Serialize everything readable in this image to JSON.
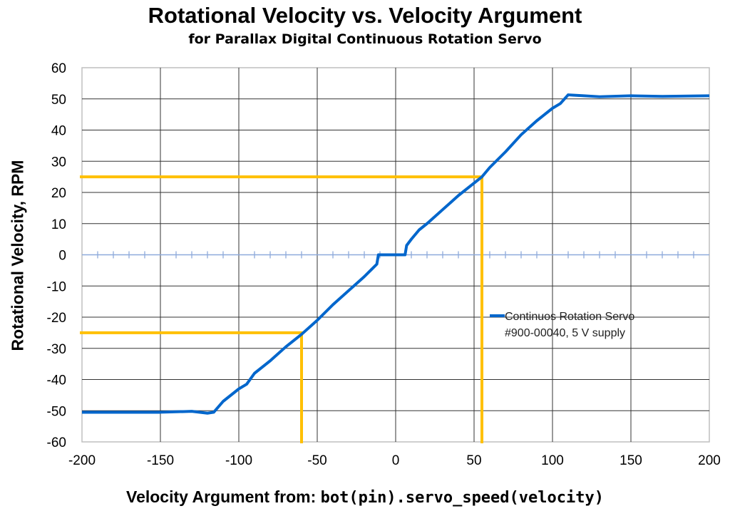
{
  "chart_data": {
    "type": "line",
    "title": "Rotational Velocity vs. Velocity Argument",
    "subtitle": "for Parallax Digital Continuous Rotation Servo",
    "xlabel_text": "Velocity Argument from: ",
    "xlabel_code": "bot(pin).servo_speed(velocity)",
    "ylabel": "Rotational Velocity, RPM",
    "xlim": [
      -200,
      200
    ],
    "ylim": [
      -60,
      60
    ],
    "x_ticks": [
      "-200",
      "-150",
      "-100",
      "-50",
      "0",
      "50",
      "100",
      "150",
      "200"
    ],
    "y_ticks": [
      "60",
      "50",
      "40",
      "30",
      "20",
      "10",
      "0",
      "-10",
      "-20",
      "-30",
      "-40",
      "-50",
      "-60"
    ],
    "grid": true,
    "legend_position": "right",
    "series": [
      {
        "name": "Continuos Rotation Servo #900-00040, 5 V supply",
        "legend_lines": [
          "Continuos Rotation Servo",
          "#900-00040, 5 V supply"
        ],
        "color": "#0066cc",
        "x": [
          -200,
          -150,
          -130,
          -120,
          -116,
          -110,
          -100,
          -95,
          -90,
          -80,
          -70,
          -60,
          -50,
          -40,
          -30,
          -20,
          -15,
          -12,
          -11,
          6,
          7,
          10,
          15,
          20,
          30,
          40,
          55,
          60,
          70,
          80,
          90,
          100,
          105,
          110,
          113,
          120,
          130,
          150,
          170,
          200
        ],
        "y": [
          -50.5,
          -50.5,
          -50.2,
          -50.8,
          -50.5,
          -47,
          -43,
          -41.5,
          -38,
          -34,
          -29.5,
          -25.5,
          -21,
          -16,
          -11.5,
          -7,
          -4.5,
          -3,
          0,
          0,
          3,
          5,
          8,
          10,
          14.5,
          19,
          25,
          28,
          33,
          38.5,
          43,
          47,
          48.5,
          51.3,
          51.2,
          51,
          50.7,
          51,
          50.8,
          51
        ]
      }
    ],
    "reference_lines": {
      "color": "#ffc000",
      "upper": {
        "x": 55,
        "y": 25
      },
      "lower": {
        "x": -60,
        "y": -25
      }
    },
    "zero_axis_color": "#8eaadb"
  }
}
